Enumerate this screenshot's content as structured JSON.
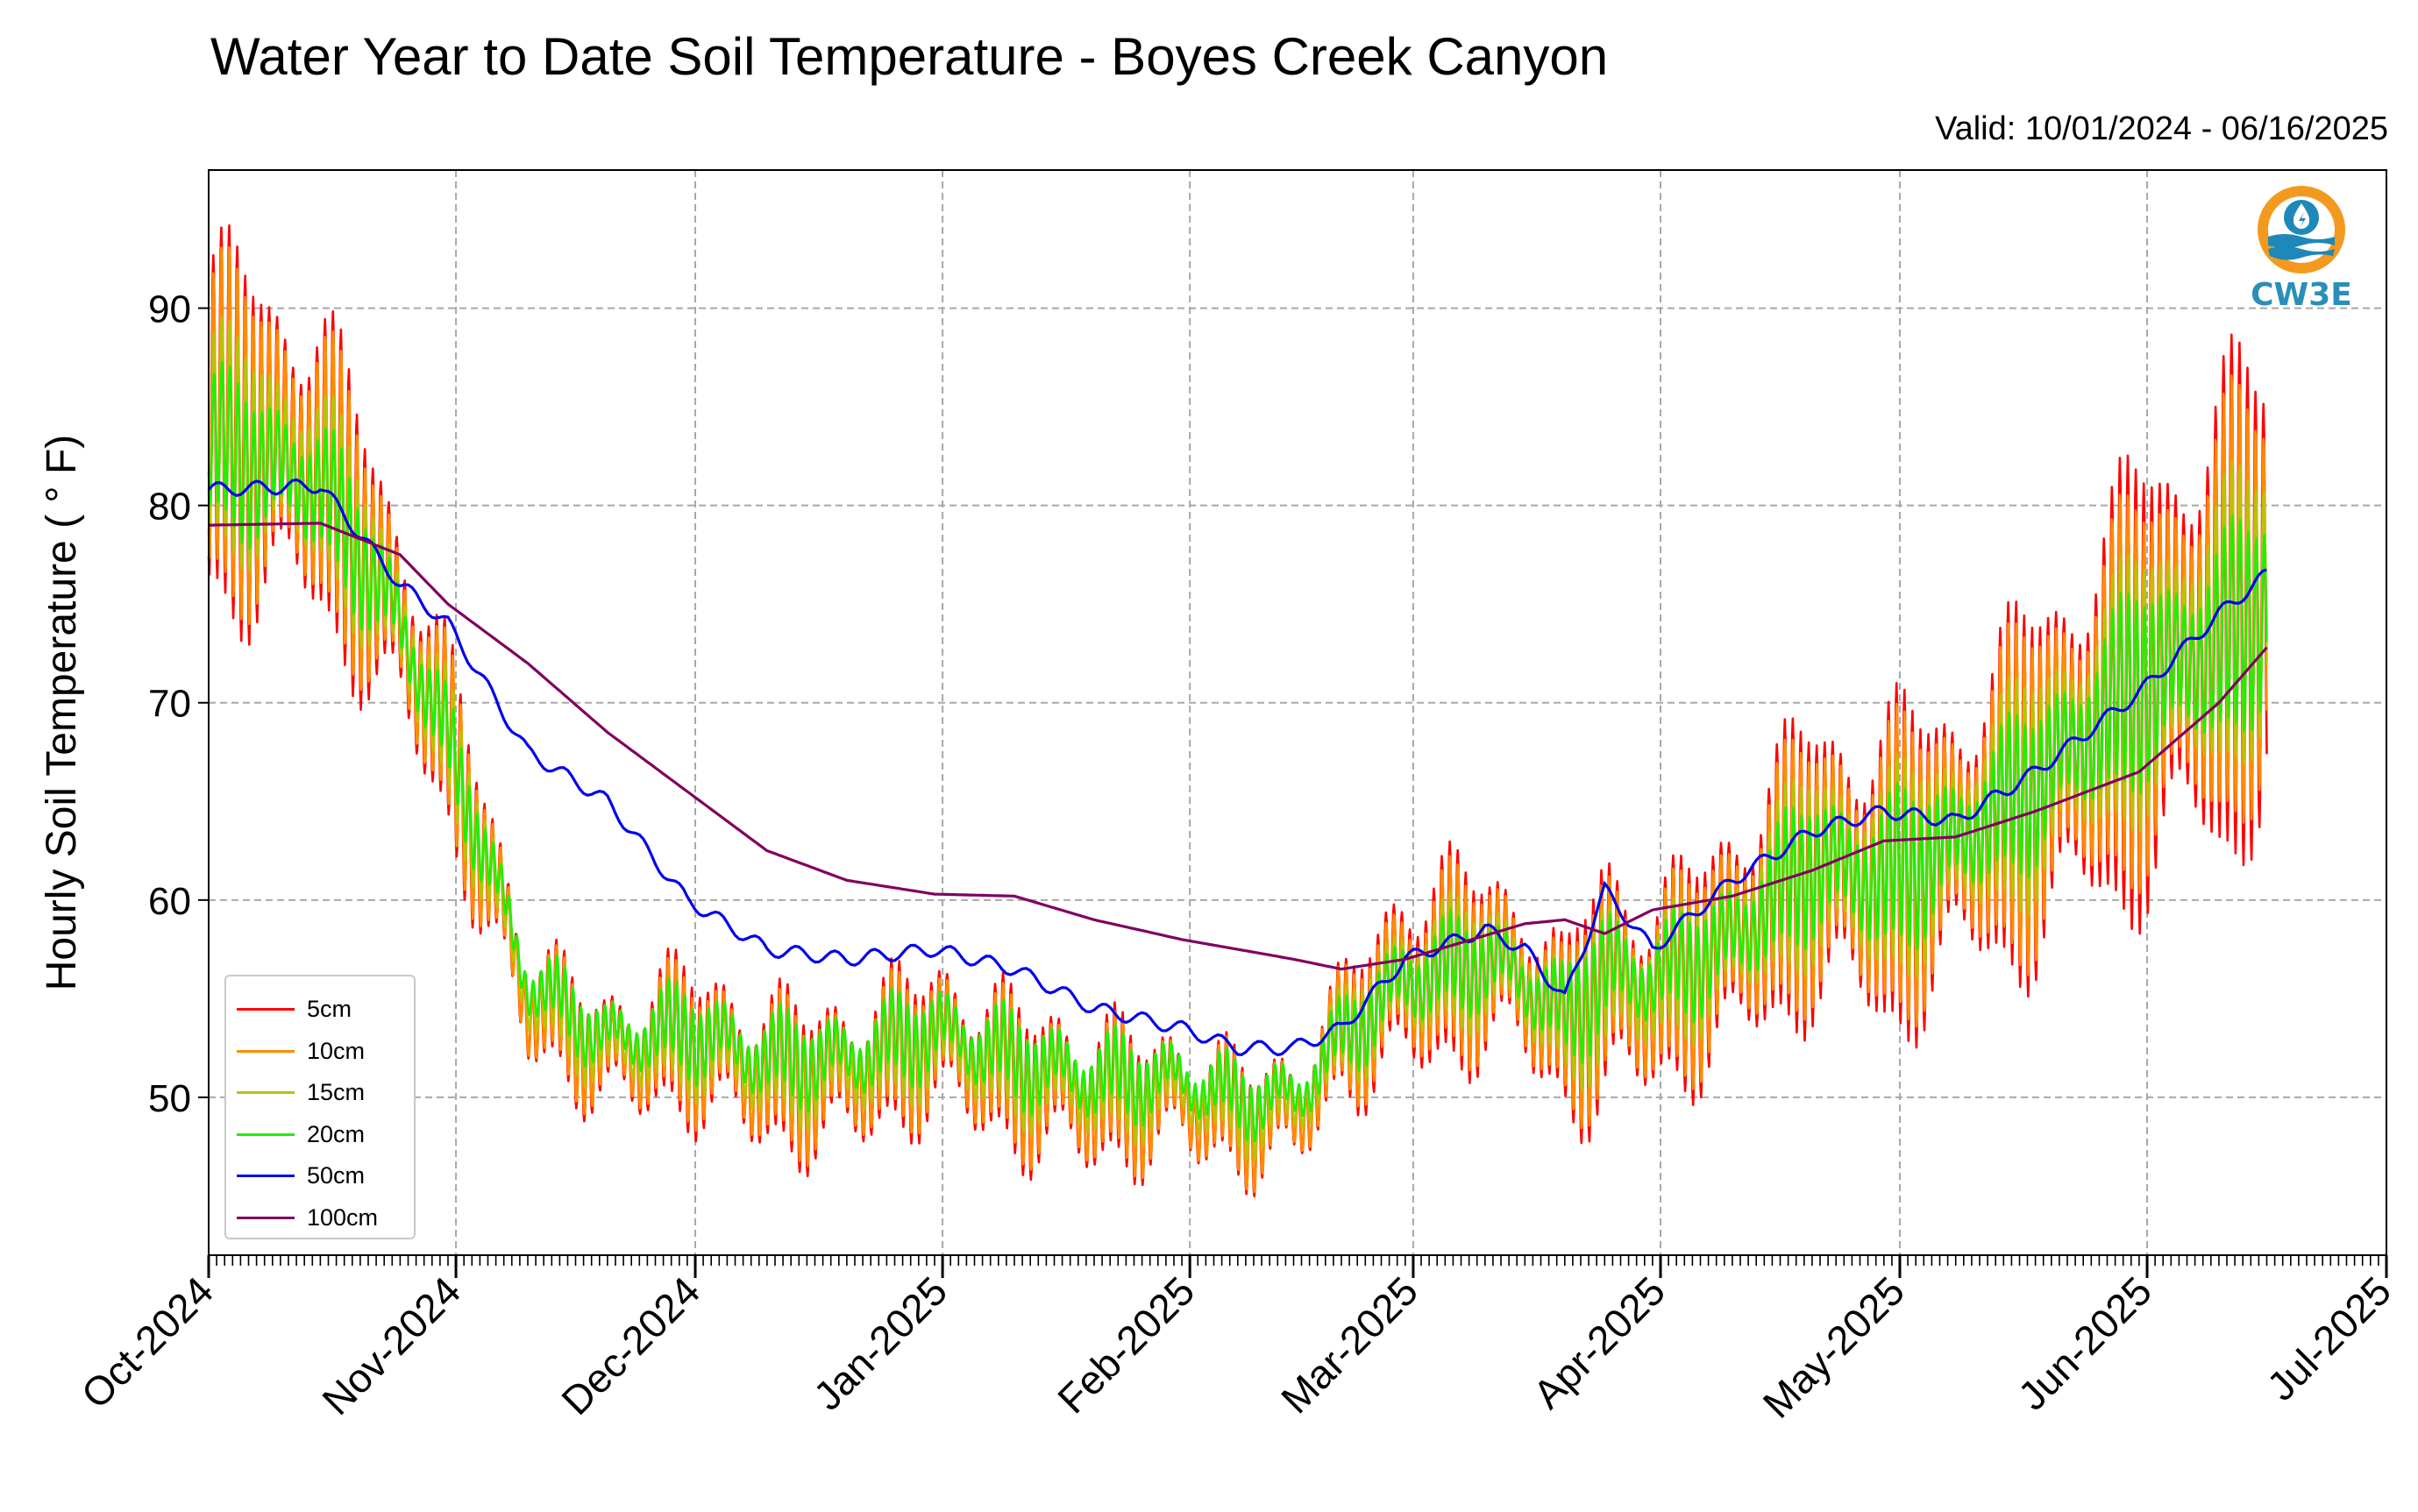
{
  "chart_data": {
    "type": "line",
    "title": "Water Year to Date Soil Temperature - Boyes Creek Canyon",
    "subtitle": "Valid: 10/01/2024 - 06/16/2025",
    "ylabel": "Hourly Soil Temperature ( ° F)",
    "xlabel": "",
    "xlim": [
      "2024-10-01",
      "2025-07-01"
    ],
    "ylim": [
      42,
      97
    ],
    "yticks": [
      50,
      60,
      70,
      80,
      90
    ],
    "xticks": [
      "Oct-2024",
      "Nov-2024",
      "Dec-2024",
      "Jan-2025",
      "Feb-2025",
      "Mar-2025",
      "Apr-2025",
      "May-2025",
      "Jun-2025",
      "Jul-2025"
    ],
    "grid": true,
    "legend_position": "lower-left",
    "logo_text": "CW3E",
    "daily_keys": {
      "dates": [
        "2024-10-01",
        "2024-10-15",
        "2024-10-25",
        "2024-10-31",
        "2024-11-10",
        "2024-11-20",
        "2024-11-30",
        "2024-12-10",
        "2024-12-20",
        "2024-12-31",
        "2025-01-10",
        "2025-01-20",
        "2025-01-31",
        "2025-02-07",
        "2025-02-14",
        "2025-02-20",
        "2025-02-28",
        "2025-03-10",
        "2025-03-15",
        "2025-03-20",
        "2025-03-25",
        "2025-03-31",
        "2025-04-10",
        "2025-04-20",
        "2025-04-29",
        "2025-05-08",
        "2025-05-18",
        "2025-05-31",
        "2025-06-10",
        "2025-06-16"
      ]
    },
    "series": [
      {
        "name": "5cm",
        "color": "#ff0000",
        "mean": [
          84,
          82,
          74,
          68,
          55,
          52,
          53,
          51,
          51,
          53,
          51,
          50,
          50,
          49,
          49,
          53,
          56,
          57,
          56,
          53,
          56,
          55,
          58,
          62,
          61,
          63,
          66,
          71,
          74,
          76
        ],
        "amp": [
          10,
          9,
          6,
          5,
          3,
          3,
          4,
          4,
          4,
          4,
          4,
          4,
          3,
          3,
          3,
          3,
          6,
          5,
          5,
          4,
          8,
          5,
          7,
          8,
          9,
          8,
          10,
          12,
          14,
          12
        ]
      },
      {
        "name": "10cm",
        "color": "#ff8c00",
        "mean": [
          84,
          82,
          74,
          68,
          55,
          52,
          53,
          51,
          51,
          53,
          51,
          50,
          50,
          49,
          49,
          53,
          56,
          57,
          56,
          53,
          56,
          55,
          58,
          62,
          61,
          63,
          66,
          71,
          74,
          76
        ],
        "amp": [
          9,
          8,
          5,
          4.5,
          2.8,
          2.6,
          3.5,
          3.5,
          3.5,
          3.5,
          3.5,
          3.5,
          2.8,
          2.8,
          2.8,
          2.8,
          5,
          4.5,
          4.5,
          3.5,
          7,
          4.5,
          6,
          7,
          8,
          7,
          9,
          10,
          12,
          10
        ]
      },
      {
        "name": "15cm",
        "color": "#b8c400",
        "mean": [
          83.5,
          81.5,
          74,
          68,
          55.5,
          52.5,
          53,
          51.5,
          51.5,
          53,
          51.5,
          50.5,
          50.5,
          49.5,
          49.5,
          53,
          56,
          57,
          56,
          53.5,
          56,
          55.5,
          58,
          62,
          61,
          63,
          66,
          71,
          73.5,
          75.5
        ],
        "amp": [
          6,
          5,
          3.5,
          3,
          2,
          2,
          2.5,
          2.5,
          2.5,
          2.5,
          2.5,
          2.5,
          2,
          2,
          2,
          2,
          3.5,
          3,
          3,
          2.5,
          5,
          3,
          4,
          5,
          5.5,
          5,
          6,
          7,
          8,
          7
        ]
      },
      {
        "name": "20cm",
        "color": "#22ee00",
        "mean": [
          83,
          81,
          74,
          68,
          56,
          53,
          53.5,
          52,
          52,
          53.5,
          52,
          51,
          51,
          50,
          50,
          53,
          56,
          57,
          56,
          54,
          56.5,
          56,
          58,
          62,
          61,
          63,
          66,
          71,
          73,
          75
        ],
        "amp": [
          4,
          3.5,
          2.5,
          2,
          1.5,
          1.5,
          2,
          2,
          2,
          2,
          2,
          2,
          1.5,
          1.5,
          1.5,
          1.5,
          2.5,
          2,
          2,
          2,
          3.5,
          2,
          3,
          3.5,
          4,
          3.5,
          4,
          5,
          5.5,
          5
        ]
      },
      {
        "name": "50cm",
        "color": "#0000ee",
        "values": [
          80.8,
          81,
          76,
          74,
          67.5,
          65,
          60,
          57.5,
          57,
          57.5,
          56.5,
          54.5,
          53.5,
          52.5,
          52.5,
          53.5,
          57,
          58.5,
          57.5,
          55,
          60.5,
          57.5,
          61,
          63.5,
          64.5,
          64,
          66.5,
          70.5,
          74.5,
          76.5
        ]
      },
      {
        "name": "100cm",
        "color": "#800060",
        "values": [
          79,
          79.1,
          77.5,
          75,
          72,
          68.5,
          65.5,
          62.5,
          61,
          60.3,
          60.2,
          59,
          58,
          57.5,
          57,
          56.5,
          57,
          58.2,
          58.8,
          59,
          58.3,
          59.5,
          60.2,
          61.5,
          63,
          63.2,
          64.5,
          66.5,
          70,
          72.8
        ]
      }
    ]
  }
}
